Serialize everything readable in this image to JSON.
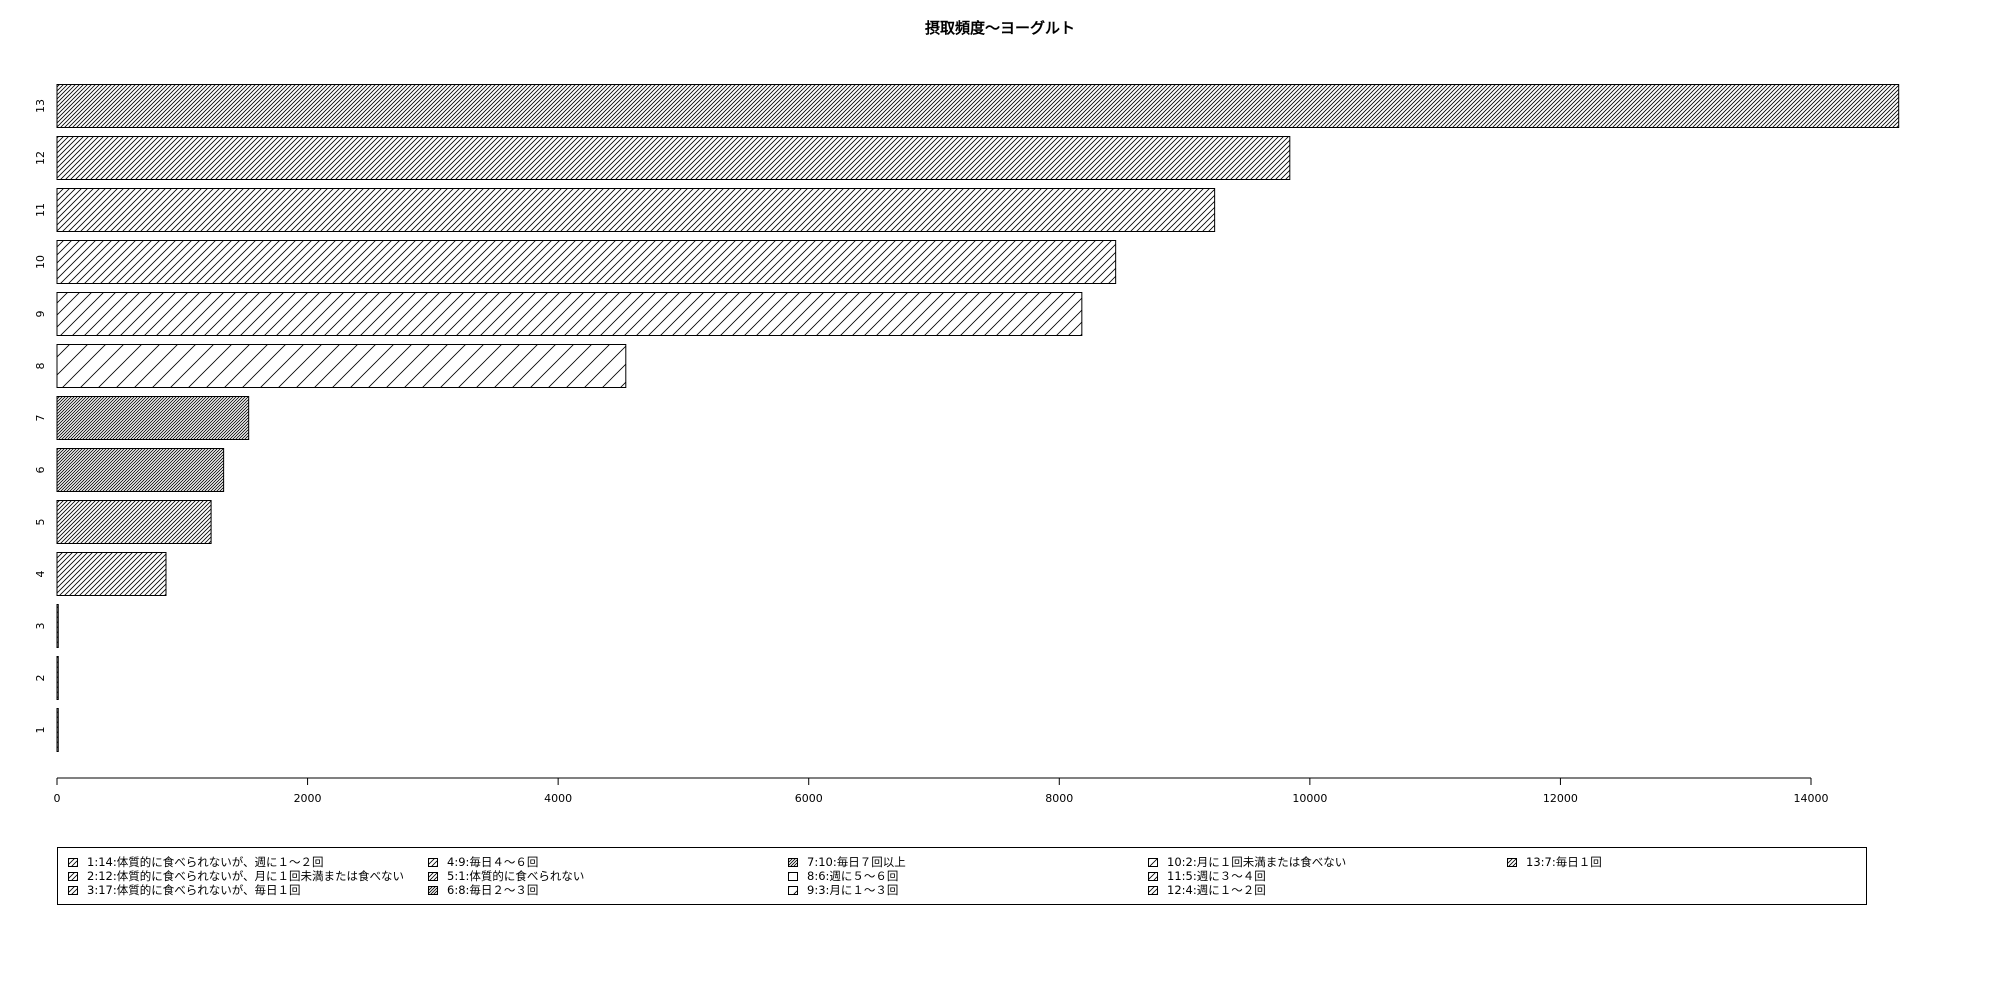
{
  "chart_data": {
    "type": "bar",
    "orientation": "horizontal",
    "title": "摂取頻度～ヨーグルト",
    "xlabel": "",
    "ylabel": "",
    "xlim": [
      0,
      14000
    ],
    "x_ticks": [
      0,
      2000,
      4000,
      6000,
      8000,
      10000,
      12000,
      14000
    ],
    "categories": [
      "1",
      "2",
      "3",
      "4",
      "5",
      "6",
      "7",
      "8",
      "9",
      "10",
      "11",
      "12",
      "13"
    ],
    "values": [
      10,
      10,
      10,
      870,
      1230,
      1330,
      1530,
      4540,
      8180,
      8450,
      9240,
      9840,
      14700
    ],
    "legend_position": "bottom",
    "legend": [
      "1:14:体質的に食べられないが、週に１～２回",
      "2:12:体質的に食べられないが、月に１回未満または食べない",
      "3:17:体質的に食べられないが、毎日１回",
      "4:9:毎日４～６回",
      "5:1:体質的に食べられない",
      "6:8:毎日２～３回",
      "7:10:毎日７回以上",
      "8:6:週に５～６回",
      "9:3:月に１～３回",
      "10:2:月に１回未満または食べない",
      "11:5:週に３～４回",
      "12:4:週に１～２回",
      "13:7:毎日１回"
    ],
    "grid": false
  }
}
